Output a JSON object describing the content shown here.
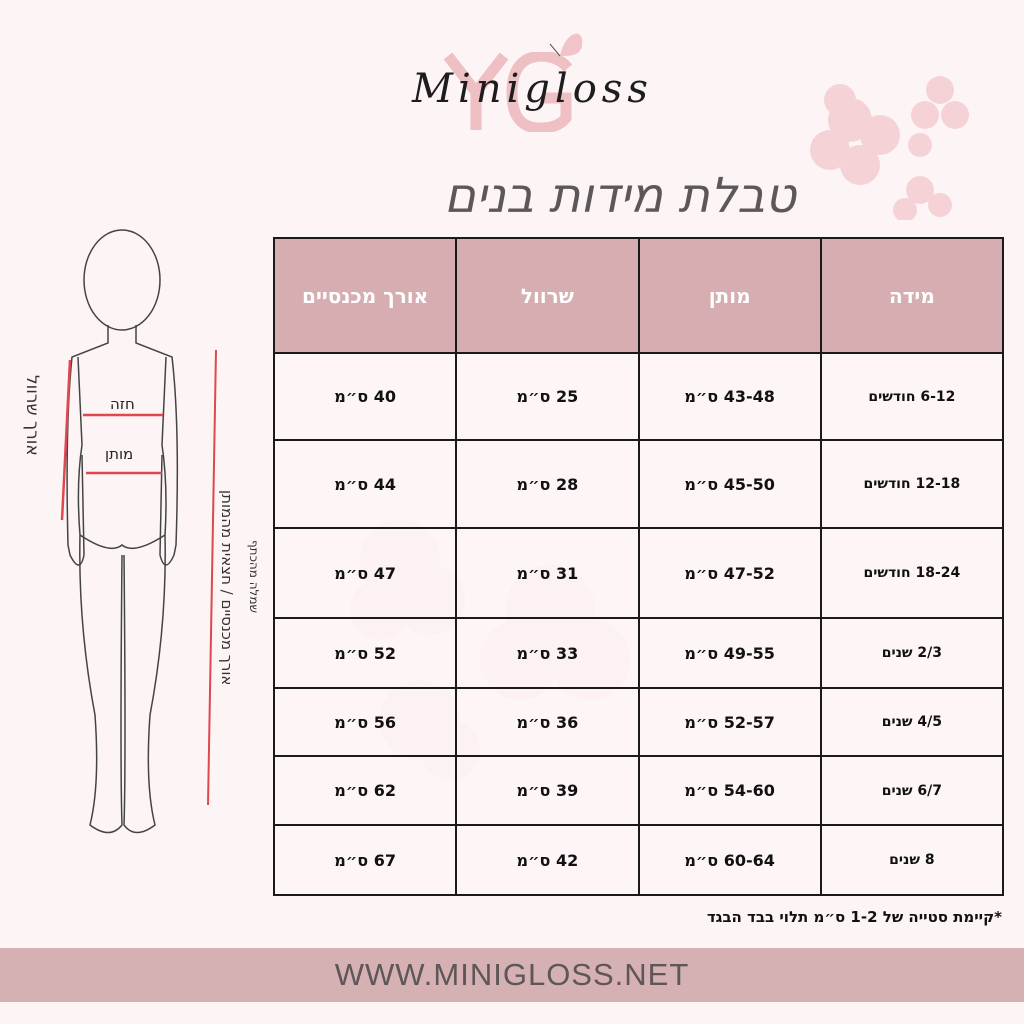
{
  "logo": {
    "monogram": "YG",
    "brand": "Minigloss"
  },
  "title": "טבלת מידות בנים",
  "figure": {
    "sleeve_length": "אורך שרוול",
    "chest": "חזה",
    "waist": "מותן",
    "pants_length": "אורך מכנסיים / חצאית מהמותן",
    "dress_length": "שמלה מהכתף"
  },
  "table": {
    "headers": [
      "מידה",
      "מותן",
      "שרוול",
      "אורך מכנסיים"
    ],
    "rows": [
      [
        "6-12 חודשים",
        "43-48 ס״מ",
        "25 ס״מ",
        "40 ס״מ"
      ],
      [
        "12-18 חודשים",
        "45-50 ס״מ",
        "28 ס״מ",
        "44 ס״מ"
      ],
      [
        "18-24 חודשים",
        "47-52 ס״מ",
        "31 ס״מ",
        "47 ס״מ"
      ],
      [
        "2/3 שנים",
        "49-55 ס״מ",
        "33 ס״מ",
        "52 ס״מ"
      ],
      [
        "4/5 שנים",
        "52-57 ס״מ",
        "36 ס״מ",
        "56 ס״מ"
      ],
      [
        "6/7 שנים",
        "54-60 ס״מ",
        "39 ס״מ",
        "62 ס״מ"
      ],
      [
        "8 שנים",
        "60-64 ס״מ",
        "42 ס״מ",
        "67 ס״מ"
      ]
    ]
  },
  "note": "*קיימת סטייה של 1-2 ס״מ תלוי בבד הבגד",
  "footer": "WWW.MINIGLOSS.NET",
  "colors": {
    "background": "#fdf4f6",
    "header_fill": "#d6adb0",
    "footer_band": "#d6b1b4",
    "measure_line": "#e0474f"
  }
}
